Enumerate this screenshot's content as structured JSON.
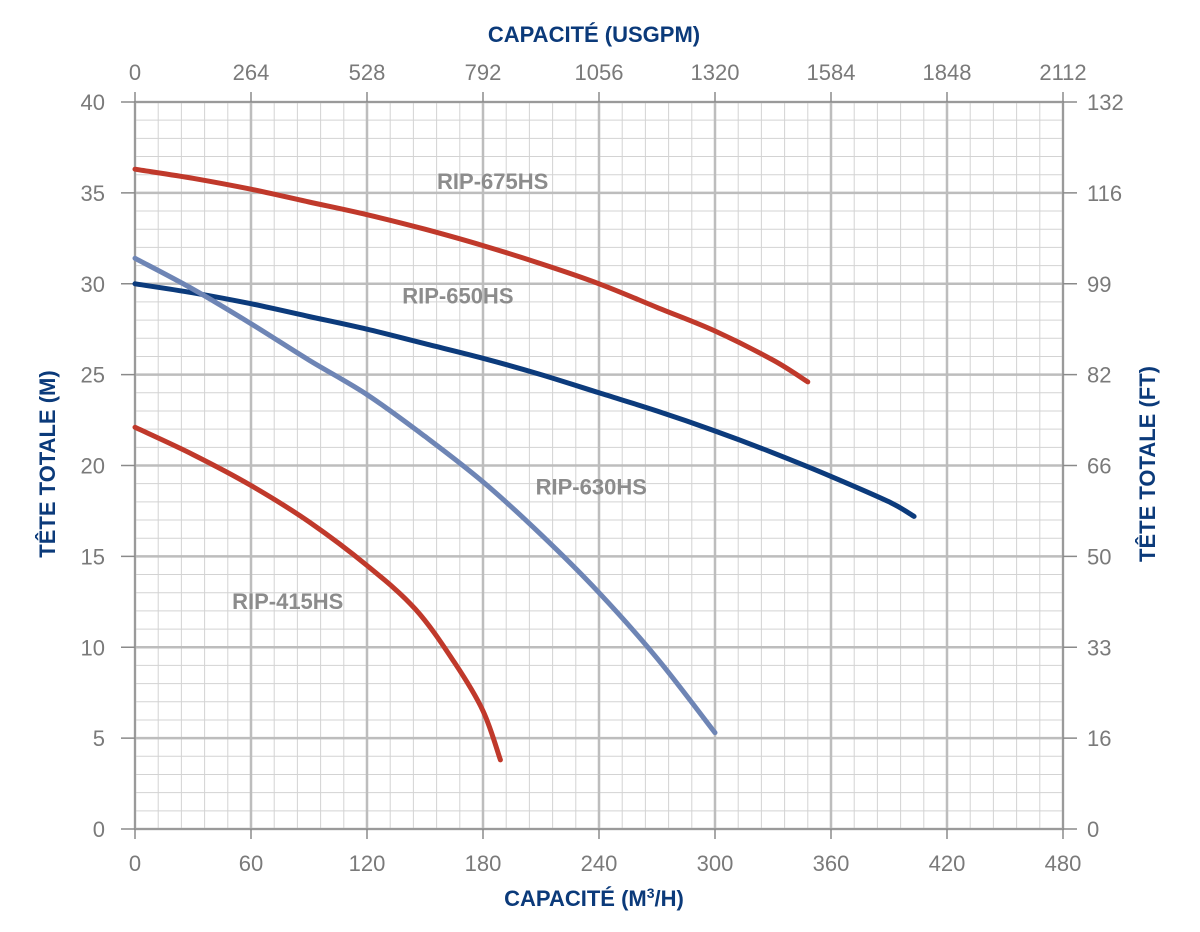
{
  "chart_data": {
    "type": "line",
    "top_axis": {
      "label": "CAPACITÉ (USGPM)",
      "ticks": [
        "0",
        "264",
        "528",
        "792",
        "1056",
        "1320",
        "1584",
        "1848",
        "2112"
      ]
    },
    "x_axis": {
      "label_main": "CAPACITÉ (M",
      "label_sup": "3",
      "label_end": "/H)",
      "range": [
        0,
        480
      ],
      "ticks": [
        0,
        60,
        120,
        180,
        240,
        300,
        360,
        420,
        480
      ]
    },
    "y_axis_left": {
      "label": "TÊTE TOTALE (M)",
      "range": [
        0,
        40
      ],
      "ticks": [
        0,
        5,
        10,
        15,
        20,
        25,
        30,
        35,
        40
      ]
    },
    "y_axis_right": {
      "label": "TÊTE TOTALE (FT)",
      "ticks": [
        "0",
        "16",
        "33",
        "50",
        "66",
        "82",
        "99",
        "116",
        "132"
      ]
    },
    "grid": true,
    "series": [
      {
        "name": "RIP-675HS",
        "color": "#c0392b",
        "label_at": [
          185,
          35.2
        ],
        "points": [
          [
            0,
            36.3
          ],
          [
            30,
            35.8
          ],
          [
            60,
            35.2
          ],
          [
            90,
            34.5
          ],
          [
            120,
            33.8
          ],
          [
            150,
            33.0
          ],
          [
            180,
            32.1
          ],
          [
            210,
            31.1
          ],
          [
            240,
            30.0
          ],
          [
            270,
            28.7
          ],
          [
            300,
            27.4
          ],
          [
            330,
            25.8
          ],
          [
            348,
            24.6
          ]
        ]
      },
      {
        "name": "RIP-650HS",
        "color": "#0c3b7c",
        "label_at": [
          167,
          28.9
        ],
        "points": [
          [
            0,
            30.0
          ],
          [
            30,
            29.5
          ],
          [
            60,
            28.9
          ],
          [
            90,
            28.2
          ],
          [
            120,
            27.5
          ],
          [
            150,
            26.7
          ],
          [
            180,
            25.9
          ],
          [
            210,
            25.0
          ],
          [
            240,
            24.0
          ],
          [
            270,
            23.0
          ],
          [
            300,
            21.9
          ],
          [
            330,
            20.7
          ],
          [
            360,
            19.4
          ],
          [
            390,
            18.0
          ],
          [
            403,
            17.2
          ]
        ]
      },
      {
        "name": "RIP-630HS",
        "color": "#6e85b5",
        "label_at": [
          236,
          18.4
        ],
        "points": [
          [
            0,
            31.4
          ],
          [
            30,
            29.7
          ],
          [
            60,
            27.8
          ],
          [
            90,
            25.8
          ],
          [
            120,
            23.9
          ],
          [
            150,
            21.6
          ],
          [
            180,
            19.1
          ],
          [
            210,
            16.2
          ],
          [
            240,
            13.0
          ],
          [
            270,
            9.4
          ],
          [
            300,
            5.3
          ]
        ]
      },
      {
        "name": "RIP-415HS",
        "color": "#c0392b",
        "label_at": [
          79,
          12.1
        ],
        "points": [
          [
            0,
            22.1
          ],
          [
            30,
            20.6
          ],
          [
            60,
            18.9
          ],
          [
            90,
            16.9
          ],
          [
            120,
            14.5
          ],
          [
            145,
            12.1
          ],
          [
            165,
            9.2
          ],
          [
            180,
            6.5
          ],
          [
            189,
            3.8
          ]
        ]
      }
    ]
  }
}
